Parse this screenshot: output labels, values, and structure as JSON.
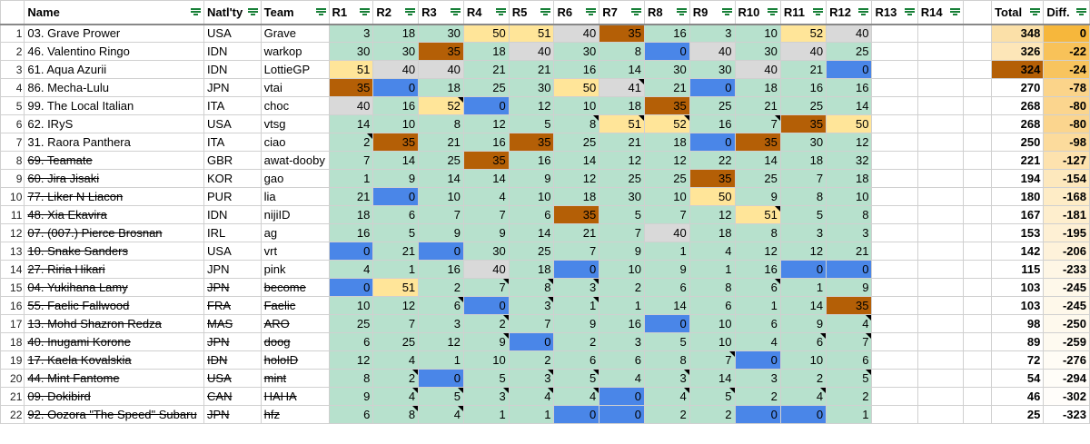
{
  "headers": [
    "",
    "Name",
    "Natl'ty",
    "Team",
    "R1",
    "R2",
    "R3",
    "R4",
    "R5",
    "R6",
    "R7",
    "R8",
    "R9",
    "R10",
    "R11",
    "R12",
    "R13",
    "R14",
    "",
    "Total",
    "Diff."
  ],
  "colors": {
    "green": "#b7e1cd",
    "blue": "#4a86e8",
    "orange": "#b45f06",
    "yellow": "#ffe599",
    "gray": "#d9d9d9",
    "white": "#ffffff"
  },
  "rows": [
    {
      "n": "1",
      "name": "03. Grave Prower",
      "nat": "USA",
      "team": "Grave",
      "strike": false,
      "r": [
        "3",
        "18",
        "30",
        "50",
        "51",
        "40",
        "35",
        "16",
        "3",
        "10",
        "52",
        "40"
      ],
      "c": [
        "g",
        "g",
        "g",
        "y",
        "y",
        "x",
        "o",
        "g",
        "g",
        "g",
        "y",
        "x"
      ],
      "m": [],
      "total": "348",
      "diff": "0",
      "tc": "#fbe0a8",
      "dc": "#f6b73c"
    },
    {
      "n": "2",
      "name": "46. Valentino Ringo",
      "nat": "IDN",
      "team": "warkop",
      "strike": false,
      "r": [
        "30",
        "30",
        "35",
        "18",
        "40",
        "30",
        "8",
        "0",
        "40",
        "30",
        "40",
        "25"
      ],
      "c": [
        "g",
        "g",
        "o",
        "g",
        "x",
        "g",
        "g",
        "b",
        "x",
        "g",
        "x",
        "g"
      ],
      "m": [],
      "total": "326",
      "diff": "-22",
      "tc": "#fde6b8",
      "dc": "#f8c259"
    },
    {
      "n": "3",
      "name": "61. Aqua Azurii",
      "nat": "IDN",
      "team": "LottieGP",
      "strike": false,
      "r": [
        "51",
        "40",
        "40",
        "21",
        "21",
        "16",
        "14",
        "30",
        "30",
        "40",
        "21",
        "0"
      ],
      "c": [
        "y",
        "x",
        "x",
        "g",
        "g",
        "g",
        "g",
        "g",
        "g",
        "x",
        "g",
        "b"
      ],
      "m": [],
      "total": "324",
      "diff": "-24",
      "tc": "#b45f06",
      "dc": "#f8c45e"
    },
    {
      "n": "4",
      "name": "86. Mecha-Lulu",
      "nat": "JPN",
      "team": "vtai",
      "strike": false,
      "r": [
        "35",
        "0",
        "18",
        "25",
        "30",
        "50",
        "41",
        "21",
        "0",
        "18",
        "16",
        "16"
      ],
      "c": [
        "o",
        "b",
        "g",
        "g",
        "g",
        "y",
        "x",
        "g",
        "b",
        "g",
        "g",
        "g"
      ],
      "m": [
        6
      ],
      "total": "270",
      "diff": "-78",
      "tc": "#ffffff",
      "dc": "#fbd48a"
    },
    {
      "n": "5",
      "name": "99. The Local Italian",
      "nat": "ITA",
      "team": "choc",
      "strike": false,
      "r": [
        "40",
        "16",
        "52",
        "0",
        "12",
        "10",
        "18",
        "35",
        "25",
        "21",
        "25",
        "14"
      ],
      "c": [
        "x",
        "g",
        "y",
        "b",
        "g",
        "g",
        "g",
        "o",
        "g",
        "g",
        "g",
        "g"
      ],
      "m": [
        2
      ],
      "total": "268",
      "diff": "-80",
      "tc": "#ffffff",
      "dc": "#fbd58e"
    },
    {
      "n": "6",
      "name": "62. IRyS",
      "nat": "USA",
      "team": "vtsg",
      "strike": false,
      "r": [
        "14",
        "10",
        "8",
        "12",
        "5",
        "8",
        "51",
        "52",
        "16",
        "7",
        "35",
        "50"
      ],
      "c": [
        "g",
        "g",
        "g",
        "g",
        "g",
        "g",
        "y",
        "y",
        "g",
        "g",
        "o",
        "y"
      ],
      "m": [
        5,
        6,
        7,
        9
      ],
      "total": "268",
      "diff": "-80",
      "tc": "#ffffff",
      "dc": "#fbd58e"
    },
    {
      "n": "7",
      "name": "31. Raora Panthera",
      "nat": "ITA",
      "team": "ciao",
      "strike": false,
      "r": [
        "2",
        "35",
        "21",
        "16",
        "35",
        "25",
        "21",
        "18",
        "0",
        "35",
        "30",
        "12"
      ],
      "c": [
        "g",
        "o",
        "g",
        "g",
        "o",
        "g",
        "g",
        "g",
        "b",
        "o",
        "g",
        "g"
      ],
      "m": [
        0
      ],
      "total": "250",
      "diff": "-98",
      "tc": "#ffffff",
      "dc": "#fcdb9c"
    },
    {
      "n": "8",
      "name": "69. Teamate",
      "nat": "GBR",
      "team": "awat-dooby",
      "strike": true,
      "r": [
        "7",
        "14",
        "25",
        "35",
        "16",
        "14",
        "12",
        "12",
        "22",
        "14",
        "18",
        "32"
      ],
      "c": [
        "g",
        "g",
        "g",
        "o",
        "g",
        "g",
        "g",
        "g",
        "g",
        "g",
        "g",
        "g"
      ],
      "m": [],
      "total": "221",
      "diff": "-127",
      "tc": "#ffffff",
      "dc": "#fde2ae"
    },
    {
      "n": "9",
      "name": "60. Jira Jisaki",
      "nat": "KOR",
      "team": "gao",
      "strike": true,
      "r": [
        "1",
        "9",
        "14",
        "14",
        "9",
        "12",
        "25",
        "25",
        "35",
        "25",
        "7",
        "18"
      ],
      "c": [
        "g",
        "g",
        "g",
        "g",
        "g",
        "g",
        "g",
        "g",
        "o",
        "g",
        "g",
        "g"
      ],
      "m": [],
      "total": "194",
      "diff": "-154",
      "tc": "#ffffff",
      "dc": "#fde8bd"
    },
    {
      "n": "10",
      "name": "77. Liker N Liacon",
      "nat": "PUR",
      "team": "lia",
      "strike": true,
      "r": [
        "21",
        "0",
        "10",
        "4",
        "10",
        "18",
        "30",
        "10",
        "50",
        "9",
        "8",
        "10"
      ],
      "c": [
        "g",
        "b",
        "g",
        "g",
        "g",
        "g",
        "g",
        "g",
        "y",
        "g",
        "g",
        "g"
      ],
      "m": [],
      "total": "180",
      "diff": "-168",
      "tc": "#ffffff",
      "dc": "#feecc6"
    },
    {
      "n": "11",
      "name": "48. Xia Ekavira",
      "nat": "IDN",
      "team": "nijiID",
      "strike": true,
      "r": [
        "18",
        "6",
        "7",
        "7",
        "6",
        "35",
        "5",
        "7",
        "12",
        "51",
        "5",
        "8"
      ],
      "c": [
        "g",
        "g",
        "g",
        "g",
        "g",
        "o",
        "g",
        "g",
        "g",
        "y",
        "g",
        "g"
      ],
      "m": [
        9
      ],
      "total": "167",
      "diff": "-181",
      "tc": "#ffffff",
      "dc": "#feeecd"
    },
    {
      "n": "12",
      "name": "07. (007.) Pierce Brosnan",
      "nat": "IRL",
      "team": "ag",
      "strike": true,
      "r": [
        "16",
        "5",
        "9",
        "9",
        "14",
        "21",
        "7",
        "40",
        "18",
        "8",
        "3",
        "3"
      ],
      "c": [
        "g",
        "g",
        "g",
        "g",
        "g",
        "g",
        "g",
        "x",
        "g",
        "g",
        "g",
        "g"
      ],
      "m": [],
      "total": "153",
      "diff": "-195",
      "tc": "#ffffff",
      "dc": "#fef0d4"
    },
    {
      "n": "13",
      "name": "10. Snake Sanders",
      "nat": "USA",
      "team": "vrt",
      "strike": true,
      "r": [
        "0",
        "21",
        "0",
        "30",
        "25",
        "7",
        "9",
        "1",
        "4",
        "12",
        "12",
        "21"
      ],
      "c": [
        "b",
        "g",
        "b",
        "g",
        "g",
        "g",
        "g",
        "g",
        "g",
        "g",
        "g",
        "g"
      ],
      "m": [],
      "total": "142",
      "diff": "-206",
      "tc": "#ffffff",
      "dc": "#fef2da"
    },
    {
      "n": "14",
      "name": "27. Riria Hikari",
      "nat": "JPN",
      "team": "pink",
      "strike": true,
      "r": [
        "4",
        "1",
        "16",
        "40",
        "18",
        "0",
        "10",
        "9",
        "1",
        "16",
        "0",
        "0"
      ],
      "c": [
        "g",
        "g",
        "g",
        "x",
        "g",
        "b",
        "g",
        "g",
        "g",
        "g",
        "b",
        "b"
      ],
      "m": [],
      "total": "115",
      "diff": "-233",
      "tc": "#ffffff",
      "dc": "#fef6e5"
    },
    {
      "n": "15",
      "name": "04. Yukihana Lamy",
      "nat": "JPN",
      "team": "become",
      "strike": true,
      "ns": true,
      "r": [
        "0",
        "51",
        "2",
        "7",
        "8",
        "3",
        "2",
        "6",
        "8",
        "6",
        "1",
        "9"
      ],
      "c": [
        "b",
        "y",
        "g",
        "g",
        "g",
        "g",
        "g",
        "g",
        "g",
        "g",
        "g",
        "g"
      ],
      "m": [
        3,
        4,
        5,
        9
      ],
      "total": "103",
      "diff": "-245",
      "tc": "#ffffff",
      "dc": "#fef8ea"
    },
    {
      "n": "16",
      "name": "55. Faelic Fallwood",
      "nat": "FRA",
      "team": "Faelic",
      "strike": true,
      "ns": true,
      "r": [
        "10",
        "12",
        "6",
        "0",
        "3",
        "1",
        "1",
        "14",
        "6",
        "1",
        "14",
        "35"
      ],
      "c": [
        "g",
        "g",
        "g",
        "b",
        "g",
        "g",
        "g",
        "g",
        "g",
        "g",
        "g",
        "o"
      ],
      "m": [
        2,
        4,
        5
      ],
      "total": "103",
      "diff": "-245",
      "tc": "#ffffff",
      "dc": "#fef8ea"
    },
    {
      "n": "17",
      "name": "13. Mohd Shazron Redza",
      "nat": "MAS",
      "team": "ARO",
      "strike": true,
      "ns": true,
      "r": [
        "25",
        "7",
        "3",
        "2",
        "7",
        "9",
        "16",
        "0",
        "10",
        "6",
        "9",
        "4"
      ],
      "c": [
        "g",
        "g",
        "g",
        "g",
        "g",
        "g",
        "g",
        "b",
        "g",
        "g",
        "g",
        "g"
      ],
      "m": [
        3,
        11
      ],
      "total": "98",
      "diff": "-250",
      "tc": "#ffffff",
      "dc": "#fef9ed"
    },
    {
      "n": "18",
      "name": "40. Inugami Korone",
      "nat": "JPN",
      "team": "doog",
      "strike": true,
      "ns": true,
      "r": [
        "6",
        "25",
        "12",
        "9",
        "0",
        "2",
        "3",
        "5",
        "10",
        "4",
        "6",
        "7"
      ],
      "c": [
        "g",
        "g",
        "g",
        "g",
        "b",
        "g",
        "g",
        "g",
        "g",
        "g",
        "g",
        "g"
      ],
      "m": [
        3,
        10,
        11
      ],
      "total": "89",
      "diff": "-259",
      "tc": "#ffffff",
      "dc": "#fefaf0"
    },
    {
      "n": "19",
      "name": "17. Kaela Kovalskia",
      "nat": "IDN",
      "team": "holoID",
      "strike": true,
      "ns": true,
      "r": [
        "12",
        "4",
        "1",
        "10",
        "2",
        "6",
        "6",
        "8",
        "7",
        "0",
        "10",
        "6"
      ],
      "c": [
        "g",
        "g",
        "g",
        "g",
        "g",
        "g",
        "g",
        "g",
        "g",
        "b",
        "g",
        "g"
      ],
      "m": [
        8
      ],
      "total": "72",
      "diff": "-276",
      "tc": "#ffffff",
      "dc": "#fffcf5"
    },
    {
      "n": "20",
      "name": "44. Mint Fantome",
      "nat": "USA",
      "team": "mint",
      "strike": true,
      "ns": true,
      "r": [
        "8",
        "2",
        "0",
        "5",
        "3",
        "5",
        "4",
        "3",
        "14",
        "3",
        "2",
        "5"
      ],
      "c": [
        "g",
        "g",
        "b",
        "g",
        "g",
        "g",
        "g",
        "g",
        "g",
        "g",
        "g",
        "g"
      ],
      "m": [
        1,
        4,
        5,
        7,
        11
      ],
      "total": "54",
      "diff": "-294",
      "tc": "#ffffff",
      "dc": "#fffdf8"
    },
    {
      "n": "21",
      "name": "09. Dokibird",
      "nat": "CAN",
      "team": "HAHA",
      "strike": true,
      "ns": true,
      "r": [
        "9",
        "4",
        "5",
        "3",
        "4",
        "4",
        "0",
        "4",
        "5",
        "2",
        "4",
        "2"
      ],
      "c": [
        "g",
        "g",
        "g",
        "g",
        "g",
        "g",
        "b",
        "g",
        "g",
        "g",
        "g",
        "g"
      ],
      "m": [
        1,
        2,
        3,
        4,
        5,
        7,
        8,
        10
      ],
      "total": "46",
      "diff": "-302",
      "tc": "#ffffff",
      "dc": "#fffdfa"
    },
    {
      "n": "22",
      "name": "92. Oozora \"The Speed\" Subaru",
      "nat": "JPN",
      "team": "hfz",
      "strike": true,
      "ns": true,
      "r": [
        "6",
        "8",
        "4",
        "1",
        "1",
        "0",
        "0",
        "2",
        "2",
        "0",
        "0",
        "1"
      ],
      "c": [
        "g",
        "g",
        "g",
        "g",
        "g",
        "b",
        "b",
        "g",
        "g",
        "b",
        "b",
        "g"
      ],
      "m": [
        1,
        2
      ],
      "total": "25",
      "diff": "-323",
      "tc": "#ffffff",
      "dc": "#ffffff"
    }
  ]
}
